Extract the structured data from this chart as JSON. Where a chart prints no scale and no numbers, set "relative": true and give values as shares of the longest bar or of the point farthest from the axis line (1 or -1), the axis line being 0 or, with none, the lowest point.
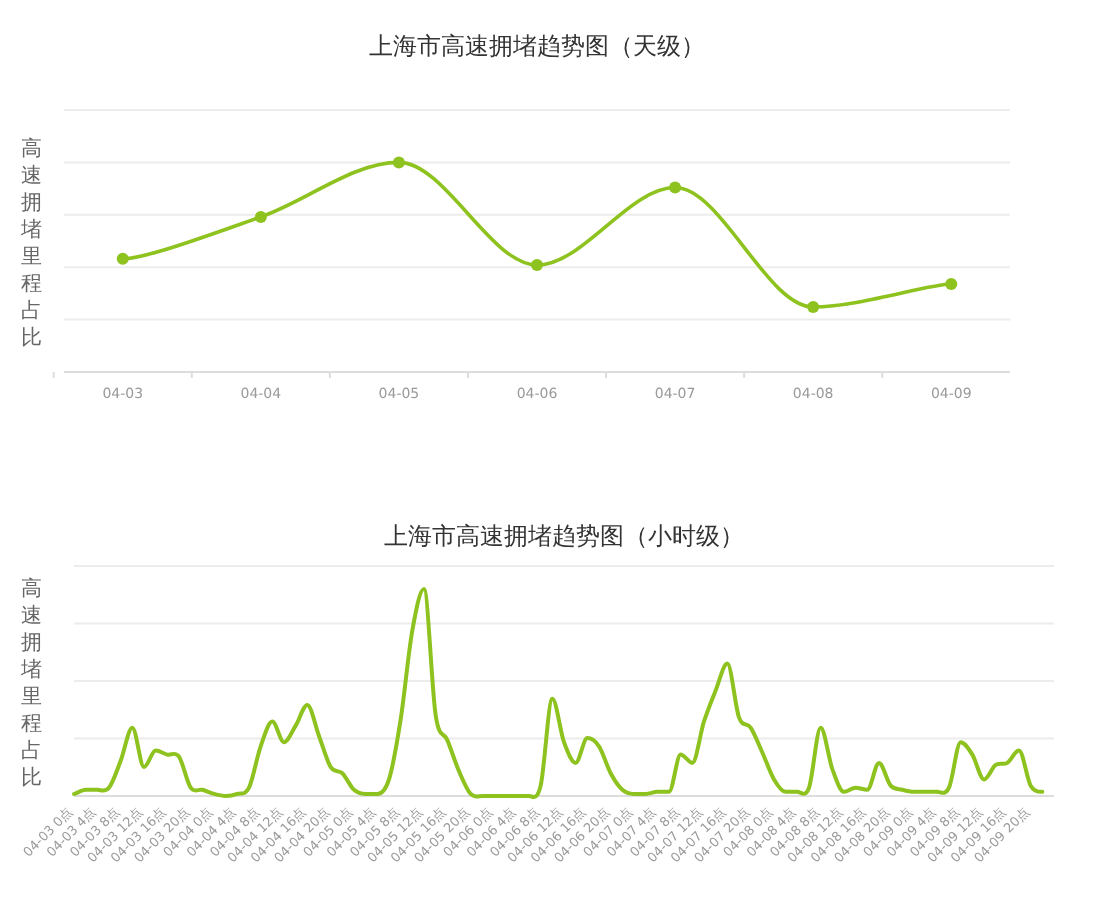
{
  "chart_data": [
    {
      "type": "line",
      "title": "上海市高速拥堵趋势图（天级）",
      "ylabel": "高速拥堵里程占比",
      "relative": true,
      "grid": "y",
      "marker": "circle",
      "categories": [
        "04-03",
        "04-04",
        "04-05",
        "04-06",
        "04-07",
        "04-08",
        "04-09"
      ],
      "series": [
        {
          "color": "#8dc21f",
          "values": [
            0.54,
            0.74,
            1,
            0.51,
            0.88,
            0.31,
            0.42
          ]
        }
      ]
    },
    {
      "type": "line",
      "title": "上海市高速拥堵趋势图（小时级）",
      "ylabel": "高速拥堵里程占比",
      "relative": true,
      "grid": "y",
      "marker": "none",
      "categories": [
        "04-03 0点",
        null,
        "04-03 4点",
        null,
        "04-03 8点",
        null,
        "04-03 12点",
        null,
        "04-03 16点",
        null,
        "04-03 20点",
        null,
        "04-04 0点",
        null,
        "04-04 4点",
        null,
        "04-04 8点",
        null,
        "04-04 12点",
        null,
        "04-04 16点",
        null,
        "04-04 20点",
        null,
        "04-05 0点",
        null,
        "04-05 4点",
        null,
        "04-05 8点",
        null,
        "04-05 12点",
        null,
        "04-05 16点",
        null,
        "04-05 20点",
        null,
        "04-06 0点",
        null,
        "04-06 4点",
        null,
        "04-06 8点",
        null,
        "04-06 12点",
        null,
        "04-06 16点",
        null,
        "04-06 20点",
        null,
        "04-07 0点",
        null,
        "04-07 4点",
        null,
        "04-07 8点",
        null,
        "04-07 12点",
        null,
        "04-07 16点",
        null,
        "04-07 20点",
        null,
        "04-08 0点",
        null,
        "04-08 4点",
        null,
        "04-08 8点",
        null,
        "04-08 12点",
        null,
        "04-08 16点",
        null,
        "04-08 20点",
        null,
        "04-09 0点",
        null,
        "04-09 4点",
        null,
        "04-09 8点",
        null,
        "04-09 12点",
        null,
        "04-09 16点",
        null,
        "04-09 20点",
        null
      ],
      "series": [
        {
          "color": "#8dc21f",
          "values": [
            0.01,
            0.03,
            0.03,
            0.04,
            0.17,
            0.33,
            0.14,
            0.22,
            0.2,
            0.19,
            0.04,
            0.03,
            0.01,
            0,
            0.01,
            0.04,
            0.24,
            0.36,
            0.26,
            0.34,
            0.44,
            0.29,
            0.14,
            0.11,
            0.03,
            0.01,
            0.01,
            0.08,
            0.37,
            0.8,
            1,
            0.39,
            0.27,
            0.12,
            0.01,
            0,
            0,
            0,
            0,
            0,
            0.05,
            0.47,
            0.26,
            0.16,
            0.28,
            0.24,
            0.11,
            0.03,
            0.01,
            0.01,
            0.02,
            0.02,
            0.2,
            0.16,
            0.36,
            0.51,
            0.64,
            0.38,
            0.33,
            0.21,
            0.08,
            0.02,
            0.02,
            0.04,
            0.33,
            0.13,
            0.02,
            0.04,
            0.03,
            0.16,
            0.05,
            0.03,
            0.02,
            0.02,
            0.02,
            0.04,
            0.26,
            0.2,
            0.08,
            0.15,
            0.16,
            0.22,
            0.05,
            0.02
          ]
        }
      ]
    }
  ]
}
